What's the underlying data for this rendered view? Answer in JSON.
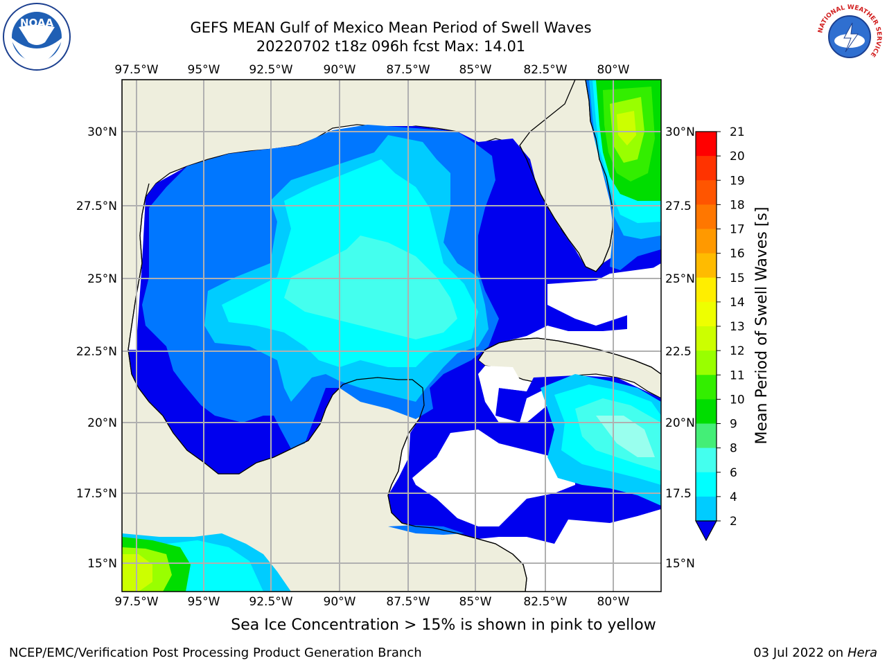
{
  "header": {
    "title_line1": "GEFS MEAN Gulf of Mexico Mean Period of Swell Waves",
    "title_line2": "20220702 t18z 096h fcst   Max: 14.01"
  },
  "logos": {
    "noaa_text": "NOAA",
    "nws_ring_text": "NATIONAL WEATHER SERVICE"
  },
  "map": {
    "lon_ticks": [
      "97.5°W",
      "95°W",
      "92.5°W",
      "90°W",
      "87.5°W",
      "85°W",
      "82.5°W",
      "80°W"
    ],
    "lat_ticks_left": [
      "30°N",
      "27.5°N",
      "25°N",
      "22.5°N",
      "20°N",
      "17.5°N",
      "15°N"
    ],
    "lat_ticks_right": [
      "30°N",
      "27.5",
      "25°N",
      "22.5",
      "20°N",
      "17.5",
      "15°N"
    ],
    "land_color": "#eeeedd",
    "grid_color": "#b0b0b0"
  },
  "colorbar": {
    "label": "Mean Period of Swell Waves [s]",
    "ticks": [
      "21",
      "20",
      "19",
      "18",
      "17",
      "16",
      "15",
      "14",
      "13",
      "12",
      "11",
      "10",
      "9",
      "8",
      "6",
      "4",
      "2"
    ],
    "colors": [
      "#ff0000",
      "#ff3300",
      "#ff5500",
      "#ff7700",
      "#ff9900",
      "#ffbb00",
      "#ffee00",
      "#eeff00",
      "#ccff00",
      "#99ff00",
      "#33ee00",
      "#00dd00",
      "#44ee77",
      "#99ffee",
      "#44ffee",
      "#00ffff",
      "#00ccff",
      "#0077ff"
    ],
    "under_color": "#0000ee"
  },
  "footer": {
    "ice_note": "Sea Ice Concentration > 15% is shown in pink to yellow",
    "left": "NCEP/EMC/Verification Post Processing Product Generation Branch",
    "right_date": "03 Jul 2022 on ",
    "right_host": "Hera"
  }
}
